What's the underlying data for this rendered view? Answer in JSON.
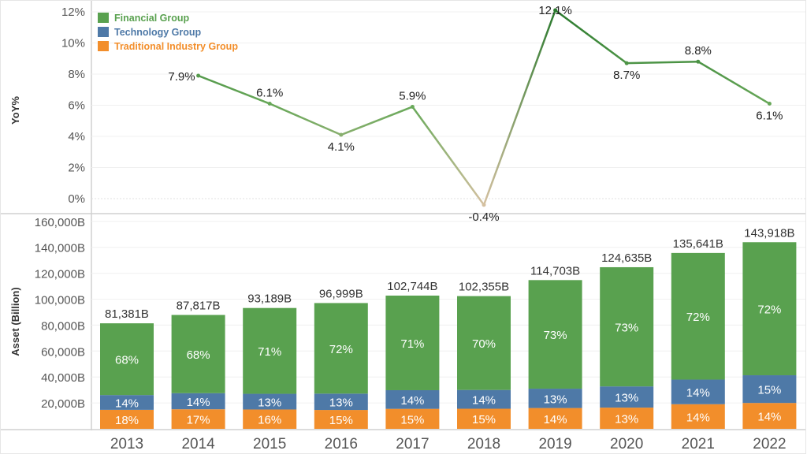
{
  "chart_data": [
    {
      "type": "line",
      "ylabel": "YoY%",
      "ylim": [
        -1,
        12.5
      ],
      "yticks": [
        "0%",
        "2%",
        "4%",
        "6%",
        "8%",
        "10%",
        "12%"
      ],
      "ytick_values": [
        0,
        2,
        4,
        6,
        8,
        10,
        12
      ],
      "x": [
        "2014",
        "2015",
        "2016",
        "2017",
        "2018",
        "2019",
        "2020",
        "2021",
        "2022"
      ],
      "values": [
        7.9,
        6.1,
        4.1,
        5.9,
        -0.4,
        12.1,
        8.7,
        8.8,
        6.1
      ],
      "labels": [
        "7.9%",
        "6.1%",
        "4.1%",
        "5.9%",
        "-0.4%",
        "12.1%",
        "8.7%",
        "8.8%",
        "6.1%"
      ],
      "color_scale": [
        "#d4c0a0",
        "#6aa95a",
        "#2b7a2e"
      ],
      "grid": true
    },
    {
      "type": "bar",
      "stacked": true,
      "ylabel": "Asset (Billion)",
      "ylim": [
        0,
        165000
      ],
      "yticks": [
        "20,000B",
        "40,000B",
        "60,000B",
        "80,000B",
        "100,000B",
        "120,000B",
        "140,000B",
        "160,000B"
      ],
      "ytick_values": [
        20000,
        40000,
        60000,
        80000,
        100000,
        120000,
        140000,
        160000
      ],
      "categories": [
        "2013",
        "2014",
        "2015",
        "2016",
        "2017",
        "2018",
        "2019",
        "2020",
        "2021",
        "2022"
      ],
      "totals": [
        81381,
        87817,
        93189,
        96999,
        102744,
        102355,
        114703,
        124635,
        135641,
        143918
      ],
      "total_labels": [
        "81,381B",
        "87,817B",
        "93,189B",
        "96,999B",
        "102,744B",
        "102,355B",
        "114,703B",
        "124,635B",
        "135,641B",
        "143,918B"
      ],
      "series": [
        {
          "name": "Traditional Industry Group",
          "color": "#f28e2b",
          "share": [
            18,
            17,
            16,
            15,
            15,
            15,
            14,
            13,
            14,
            14
          ],
          "labels": [
            "18%",
            "17%",
            "16%",
            "15%",
            "15%",
            "15%",
            "14%",
            "13%",
            "14%",
            "14%"
          ]
        },
        {
          "name": "Technology Group",
          "color": "#4e79a7",
          "share": [
            14,
            14,
            13,
            13,
            14,
            14,
            13,
            13,
            14,
            15
          ],
          "labels": [
            "14%",
            "14%",
            "13%",
            "13%",
            "14%",
            "14%",
            "13%",
            "13%",
            "14%",
            "15%"
          ]
        },
        {
          "name": "Financial Group",
          "color": "#59a14f",
          "share": [
            68,
            68,
            71,
            72,
            71,
            70,
            73,
            73,
            72,
            72
          ],
          "labels": [
            "68%",
            "68%",
            "71%",
            "72%",
            "71%",
            "70%",
            "73%",
            "73%",
            "72%",
            "72%"
          ]
        }
      ],
      "grid": true
    }
  ],
  "legend": {
    "placement": "top-left",
    "items": [
      {
        "label": "Financial Group",
        "color": "#59a14f"
      },
      {
        "label": "Technology Group",
        "color": "#4e79a7"
      },
      {
        "label": "Traditional Industry Group",
        "color": "#f28e2b"
      }
    ]
  }
}
